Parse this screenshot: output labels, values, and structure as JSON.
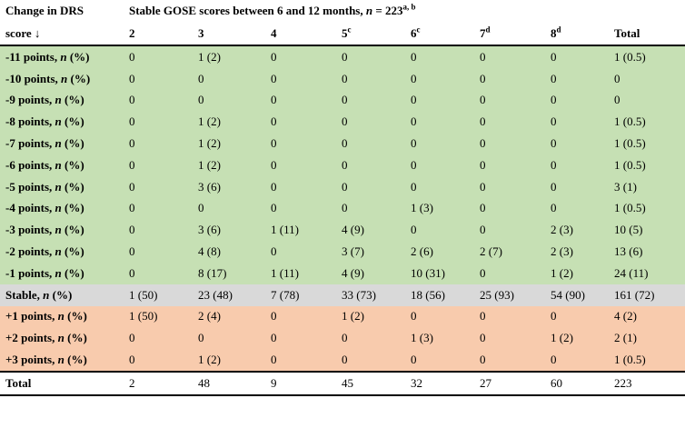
{
  "header": {
    "col0_line1": "Change in DRS",
    "col0_line2": "score ↓",
    "span_title_pre": "Stable GOSE scores between 6 and 12 months, ",
    "span_n_var": "n",
    "span_n_val": " = 223",
    "span_sup": "a, b",
    "columns": [
      {
        "label": "2",
        "sup": ""
      },
      {
        "label": "3",
        "sup": ""
      },
      {
        "label": "4",
        "sup": ""
      },
      {
        "label": "5",
        "sup": "c"
      },
      {
        "label": "6",
        "sup": "c"
      },
      {
        "label": "7",
        "sup": "d"
      },
      {
        "label": "8",
        "sup": "d"
      },
      {
        "label": "Total",
        "sup": ""
      }
    ]
  },
  "rows": [
    {
      "pre": "-11 points, ",
      "n": "n",
      "post": " (%)",
      "c": [
        "0",
        "1 (2)",
        "0",
        "0",
        "0",
        "0",
        "0",
        "1 (0.5)"
      ]
    },
    {
      "pre": "-10 points, ",
      "n": "n",
      "post": " (%)",
      "c": [
        "0",
        "0",
        "0",
        "0",
        "0",
        "0",
        "0",
        "0"
      ]
    },
    {
      "pre": "-9 points, ",
      "n": "n",
      "post": " (%)",
      "c": [
        "0",
        "0",
        "0",
        "0",
        "0",
        "0",
        "0",
        "0"
      ]
    },
    {
      "pre": "-8 points, ",
      "n": "n",
      "post": " (%)",
      "c": [
        "0",
        "1 (2)",
        "0",
        "0",
        "0",
        "0",
        "0",
        "1 (0.5)"
      ]
    },
    {
      "pre": "-7 points, ",
      "n": "n",
      "post": " (%)",
      "c": [
        "0",
        "1 (2)",
        "0",
        "0",
        "0",
        "0",
        "0",
        "1 (0.5)"
      ]
    },
    {
      "pre": "-6 points, ",
      "n": "n",
      "post": " (%)",
      "c": [
        "0",
        "1 (2)",
        "0",
        "0",
        "0",
        "0",
        "0",
        "1 (0.5)"
      ]
    },
    {
      "pre": "-5 points, ",
      "n": "n",
      "post": " (%)",
      "c": [
        "0",
        "3 (6)",
        "0",
        "0",
        "0",
        "0",
        "0",
        "3 (1)"
      ]
    },
    {
      "pre": "-4 points, ",
      "n": "n",
      "post": " (%)",
      "c": [
        "0",
        "0",
        "0",
        "0",
        "1 (3)",
        "0",
        "0",
        "1 (0.5)"
      ]
    },
    {
      "pre": "-3 points, ",
      "n": "n",
      "post": " (%)",
      "c": [
        "0",
        "3 (6)",
        "1 (11)",
        "4 (9)",
        "0",
        "0",
        "2 (3)",
        "10 (5)"
      ]
    },
    {
      "pre": "-2 points, ",
      "n": "n",
      "post": " (%)",
      "c": [
        "0",
        "4 (8)",
        "0",
        "3 (7)",
        "2 (6)",
        "2 (7)",
        "2 (3)",
        "13 (6)"
      ]
    },
    {
      "pre": "-1 points, ",
      "n": "n",
      "post": " (%)",
      "c": [
        "0",
        "8 (17)",
        "1 (11)",
        "4 (9)",
        "10 (31)",
        "0",
        "1 (2)",
        "24 (11)"
      ]
    },
    {
      "pre": "Stable, ",
      "n": "n",
      "post": " (%)",
      "c": [
        "1 (50)",
        "23 (48)",
        "7 (78)",
        "33 (73)",
        "18 (56)",
        "25 (93)",
        "54 (90)",
        "161 (72)"
      ]
    },
    {
      "pre": "+1 points, ",
      "n": "n",
      "post": " (%)",
      "c": [
        "1 (50)",
        "2 (4)",
        "0",
        "1 (2)",
        "0",
        "0",
        "0",
        "4 (2)"
      ]
    },
    {
      "pre": "+2 points, ",
      "n": "n",
      "post": " (%)",
      "c": [
        "0",
        "0",
        "0",
        "0",
        "1 (3)",
        "0",
        "1 (2)",
        "2 (1)"
      ]
    },
    {
      "pre": "+3 points, ",
      "n": "n",
      "post": " (%)",
      "c": [
        "0",
        "1 (2)",
        "0",
        "0",
        "0",
        "0",
        "0",
        "1 (0.5)"
      ]
    }
  ],
  "total": {
    "label": "Total",
    "c": [
      "2",
      "48",
      "9",
      "45",
      "32",
      "27",
      "60",
      "223"
    ]
  },
  "colors": {
    "green": "#c6e0b4",
    "gray": "#d9d9d9",
    "orange": "#f8cbad"
  }
}
